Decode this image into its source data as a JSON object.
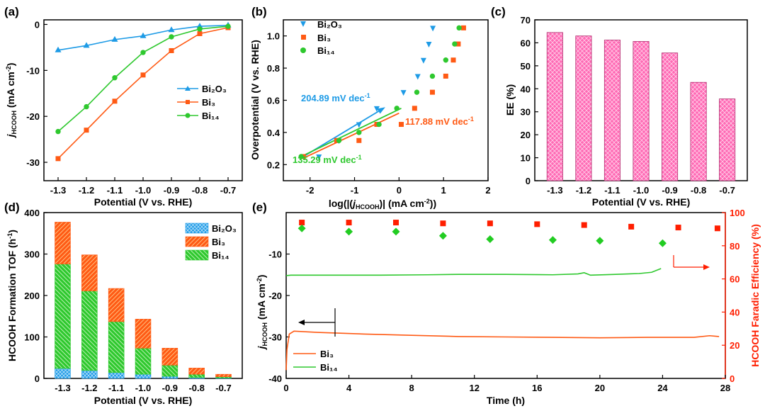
{
  "colors": {
    "bi2o3": "#1e9be6",
    "bi3": "#ff5a14",
    "bi14": "#2ec82e",
    "pink": "#ff69b4",
    "fe_red": "#ff1e00",
    "fe_green": "#22cc22",
    "black": "#000000"
  },
  "chart_data": [
    {
      "panel": "(a)",
      "type": "line",
      "xlabel": "Potential (V vs. RHE)",
      "ylabel_main": "j",
      "ylabel_sub": "HCOOH",
      "ylabel_rest": " (mA cm",
      "ylabel_sup": "-2",
      "ylabel_end": ")",
      "x": [
        -1.3,
        -1.2,
        -1.1,
        -1.0,
        -0.9,
        -0.8,
        -0.7
      ],
      "xlim": [
        -1.35,
        -0.65
      ],
      "ylim": [
        -34,
        1
      ],
      "xticks": [
        "-1.3",
        "-1.2",
        "-1.1",
        "-1.0",
        "-0.9",
        "-0.8",
        "-0.7"
      ],
      "yticks": [
        "0",
        "-10",
        "-20",
        "-30"
      ],
      "series": [
        {
          "name": "Bi₂O₃",
          "marker": "triangle",
          "color": "bi2o3",
          "values": [
            -5.6,
            -4.6,
            -3.3,
            -2.5,
            -1.2,
            -0.4,
            -0.2
          ]
        },
        {
          "name": "Bi₃",
          "marker": "square",
          "color": "bi3",
          "values": [
            -29.2,
            -23.0,
            -16.7,
            -11.0,
            -5.7,
            -2.0,
            -0.7
          ]
        },
        {
          "name": "Bi₁₄",
          "marker": "circle",
          "color": "bi14",
          "values": [
            -23.3,
            -17.9,
            -11.6,
            -6.1,
            -2.7,
            -1.0,
            -0.4
          ]
        }
      ],
      "legend": [
        "Bi₂O₃",
        "Bi₃",
        "Bi₁₄"
      ]
    },
    {
      "panel": "(b)",
      "type": "scatter",
      "xlabel_pre": "log(|(",
      "xlabel_j": "j",
      "xlabel_sub": "HCOOH",
      "xlabel_post": ")| (mA cm",
      "xlabel_sup": "-2",
      "xlabel_end": "))",
      "ylabel": "Overpotential (V vs. RHE)",
      "xlim": [
        -2.6,
        2.0
      ],
      "ylim": [
        0.1,
        1.1
      ],
      "xticks": [
        "-2",
        "-1",
        "0",
        "1",
        "2"
      ],
      "yticks": [
        "0.2",
        "0.4",
        "0.6",
        "0.8",
        "1.0"
      ],
      "series": [
        {
          "name": "Bi₂O₃",
          "marker": "triangle-down",
          "color": "bi2o3",
          "x": [
            -1.8,
            -1.35,
            -0.9,
            -0.5,
            0.1,
            0.42,
            0.55,
            0.67,
            0.76
          ],
          "y": [
            0.25,
            0.35,
            0.45,
            0.55,
            0.65,
            0.75,
            0.85,
            0.95,
            1.05
          ]
        },
        {
          "name": "Bi₃",
          "marker": "square",
          "color": "bi3",
          "x": [
            -2.15,
            -1.4,
            -0.9,
            -0.5,
            0.05,
            0.35,
            0.75,
            1.05,
            1.22,
            1.33,
            1.45
          ],
          "y": [
            0.25,
            0.35,
            0.35,
            0.45,
            0.45,
            0.55,
            0.65,
            0.75,
            0.85,
            0.95,
            1.05
          ]
        },
        {
          "name": "Bi₁₄",
          "marker": "circle",
          "color": "bi14",
          "x": [
            -2.2,
            -1.35,
            -0.9,
            -0.45,
            -0.05,
            0.4,
            0.75,
            1.05,
            1.25,
            1.35
          ],
          "y": [
            0.25,
            0.35,
            0.4,
            0.45,
            0.55,
            0.65,
            0.75,
            0.85,
            0.95,
            1.05
          ]
        }
      ],
      "fits": [
        {
          "color": "bi2o3",
          "x1": -2.15,
          "y1": 0.25,
          "x2": -0.35,
          "y2": 0.55,
          "arrow": true
        },
        {
          "color": "bi3",
          "x1": -2.15,
          "y1": 0.24,
          "x2": 0.0,
          "y2": 0.52,
          "arrow": false
        },
        {
          "color": "bi14",
          "x1": -2.2,
          "y1": 0.25,
          "x2": 0.05,
          "y2": 0.55,
          "arrow": false
        }
      ],
      "annotations": [
        "204.89 mV dec",
        "117.88 mV dec",
        "135.29 mV dec"
      ],
      "annotation_sup": "-1",
      "legend": [
        "Bi₂O₃",
        "Bi₃",
        "Bi₁₄"
      ]
    },
    {
      "panel": "(c)",
      "type": "bar",
      "xlabel": "Potential (V vs. RHE)",
      "ylabel": "EE (%)",
      "categories": [
        "-1.3",
        "-1.2",
        "-1.1",
        "-1.0",
        "-0.9",
        "-0.8",
        "-0.7"
      ],
      "values": [
        64.5,
        63.0,
        61.2,
        60.6,
        55.6,
        42.8,
        35.6
      ],
      "ylim": [
        0,
        70
      ],
      "yticks": [
        "0",
        "10",
        "20",
        "30",
        "40",
        "50",
        "60",
        "70"
      ]
    },
    {
      "panel": "(d)",
      "type": "bar",
      "stacked": true,
      "xlabel": "Potential (V vs. RHE)",
      "ylabel": "HCOOH Formation TOF (h",
      "ylabel_sup": "-1",
      "ylabel_end": ")",
      "categories": [
        "-1.3",
        "-1.2",
        "-1.1",
        "-1.0",
        "-0.9",
        "-0.8",
        "-0.7"
      ],
      "series": [
        {
          "name": "Bi₂O₃",
          "color": "bi2o3",
          "values": [
            24,
            19,
            14,
            10,
            5,
            2,
            1
          ]
        },
        {
          "name": "Bi₁₄",
          "color": "bi14",
          "values": [
            252,
            192,
            123,
            63,
            27,
            8,
            3
          ]
        },
        {
          "name": "Bi₃",
          "color": "bi3",
          "values": [
            101,
            87,
            80,
            70,
            41,
            15,
            6
          ]
        }
      ],
      "ylim": [
        0,
        400
      ],
      "yticks": [
        "0",
        "100",
        "200",
        "300",
        "400"
      ],
      "legend": [
        "Bi₂O₃",
        "Bi₃",
        "Bi₁₄"
      ]
    },
    {
      "panel": "(e)",
      "type": "line",
      "xlabel": "Time (h)",
      "ylabel_main": "j",
      "ylabel_sub": "HCOOH",
      "ylabel_rest": " (mA cm",
      "ylabel_sup": "-2",
      "ylabel_end": ")",
      "y2label": "HCOOH Faradic Efficiency (%)",
      "xlim": [
        0,
        28
      ],
      "ylim": [
        -40,
        0
      ],
      "y2lim": [
        0,
        100
      ],
      "xticks": [
        "0",
        "4",
        "8",
        "12",
        "16",
        "20",
        "24",
        "28"
      ],
      "yticks": [
        "-10",
        "-20",
        "-30",
        "-40"
      ],
      "y2ticks": [
        "0",
        "20",
        "40",
        "60",
        "80",
        "100"
      ],
      "current": [
        {
          "name": "Bi₃",
          "color": "bi3",
          "t": [
            0,
            0.05,
            0.2,
            0.5,
            2,
            5,
            8,
            11,
            14,
            17,
            20,
            23,
            26,
            27,
            27.6
          ],
          "j": [
            -38,
            -33,
            -29.3,
            -28.6,
            -28.9,
            -29.3,
            -29.6,
            -29.9,
            -30.0,
            -30.1,
            -30.2,
            -30.1,
            -30.1,
            -29.7,
            -29.9
          ]
        },
        {
          "name": "Bi₁₄",
          "color": "bi14",
          "t": [
            0,
            0.3,
            3,
            6,
            9,
            11,
            14,
            17,
            18.6,
            19.0,
            19.4,
            21,
            22.5,
            23.3,
            23.9
          ],
          "j": [
            -15.2,
            -15.1,
            -15.1,
            -15.1,
            -15.0,
            -14.9,
            -14.9,
            -15.0,
            -14.8,
            -14.5,
            -15.1,
            -14.9,
            -14.7,
            -14.4,
            -13.5
          ]
        }
      ],
      "fe": [
        {
          "name": "Bi₃ FE",
          "color": "fe_red",
          "t": [
            1,
            4,
            7,
            10,
            13,
            16,
            19,
            22,
            25,
            27.5
          ],
          "values": [
            94,
            94,
            94,
            93.5,
            93.5,
            93,
            92.5,
            91.5,
            91,
            90.5
          ]
        },
        {
          "name": "Bi₁₄ FE",
          "color": "fe_green",
          "t": [
            1,
            4,
            7,
            10,
            13,
            17,
            20,
            24
          ],
          "values": [
            90.5,
            88.5,
            88.5,
            86,
            84,
            83.5,
            83,
            81.5
          ]
        }
      ],
      "legend": [
        "Bi₃",
        "Bi₁₄"
      ]
    }
  ]
}
